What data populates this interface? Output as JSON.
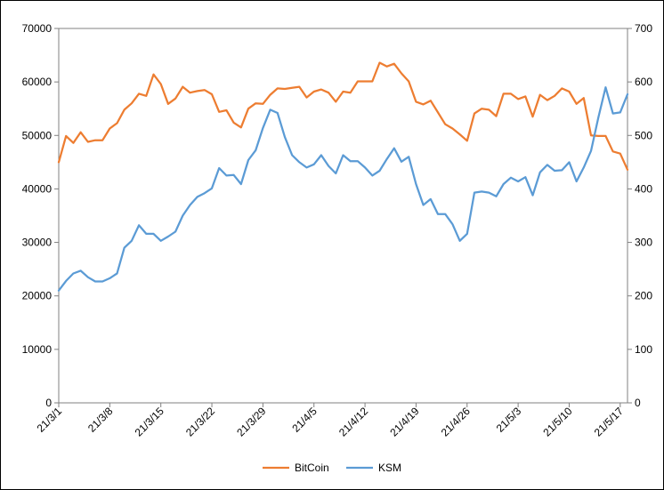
{
  "chart_data": {
    "type": "line",
    "title": "",
    "xlabel": "",
    "ylabel": "",
    "ylim": [
      0,
      70000
    ],
    "y2lim": [
      0,
      700
    ],
    "y_ticks": [
      "0",
      "10000",
      "20000",
      "30000",
      "40000",
      "50000",
      "60000",
      "70000"
    ],
    "y2_ticks": [
      "0",
      "100",
      "200",
      "300",
      "400",
      "500",
      "600",
      "700"
    ],
    "x_tick_labels": [
      "21/3/1",
      "21/3/8",
      "21/3/15",
      "21/3/22",
      "21/3/29",
      "21/4/5",
      "21/4/12",
      "21/4/19",
      "21/4/26",
      "21/5/3",
      "21/5/10",
      "21/5/17"
    ],
    "x_tick_index": [
      0,
      7,
      14,
      21,
      28,
      35,
      42,
      49,
      56,
      63,
      70,
      77
    ],
    "grid": false,
    "legend": "bottom",
    "series": [
      {
        "name": "BitCoin",
        "axis": "left",
        "color": "#ED7D31",
        "values": [
          45000,
          49900,
          48600,
          50600,
          48800,
          49100,
          49100,
          51300,
          52300,
          54800,
          56000,
          57800,
          57400,
          61400,
          59600,
          55900,
          56900,
          59100,
          58000,
          58300,
          58500,
          57700,
          54400,
          54700,
          52400,
          51500,
          55000,
          56000,
          55900,
          57600,
          58800,
          58700,
          58900,
          59100,
          57100,
          58200,
          58600,
          58000,
          56300,
          58200,
          58000,
          60100,
          60100,
          60100,
          63600,
          62900,
          63400,
          61600,
          60100,
          56300,
          55800,
          56500,
          54300,
          52100,
          51300,
          50200,
          49000,
          54100,
          55000,
          54800,
          53600,
          57800,
          57800,
          56800,
          57300,
          53500,
          57600,
          56600,
          57400,
          58800,
          58200,
          55900,
          57000,
          50000,
          49900,
          49900,
          47000,
          46600,
          43600
        ]
      },
      {
        "name": "KSM",
        "axis": "right",
        "color": "#5B9BD5",
        "values": [
          210,
          228,
          242,
          247,
          235,
          227,
          227,
          233,
          242,
          290,
          303,
          332,
          316,
          316,
          303,
          311,
          320,
          350,
          370,
          385,
          392,
          401,
          439,
          425,
          426,
          409,
          454,
          472,
          514,
          548,
          542,
          497,
          463,
          450,
          440,
          446,
          463,
          443,
          429,
          463,
          452,
          452,
          440,
          425,
          434,
          456,
          476,
          451,
          460,
          409,
          370,
          381,
          353,
          353,
          334,
          303,
          316,
          393,
          395,
          393,
          386,
          409,
          421,
          414,
          422,
          388,
          431,
          445,
          434,
          435,
          450,
          414,
          440,
          471,
          533,
          590,
          541,
          543,
          577
        ]
      }
    ]
  }
}
